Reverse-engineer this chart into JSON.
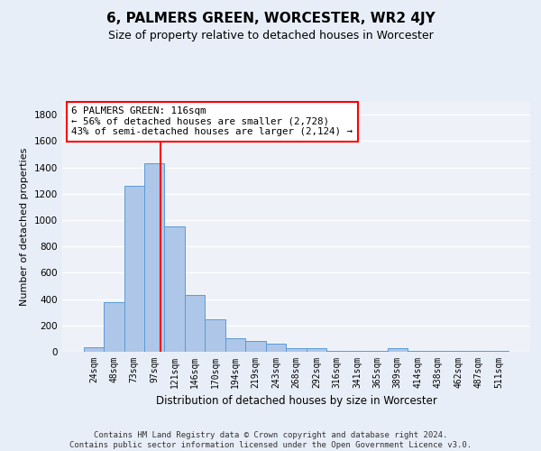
{
  "title": "6, PALMERS GREEN, WORCESTER, WR2 4JY",
  "subtitle": "Size of property relative to detached houses in Worcester",
  "xlabel": "Distribution of detached houses by size in Worcester",
  "ylabel": "Number of detached properties",
  "bin_labels": [
    "24sqm",
    "48sqm",
    "73sqm",
    "97sqm",
    "121sqm",
    "146sqm",
    "170sqm",
    "194sqm",
    "219sqm",
    "243sqm",
    "268sqm",
    "292sqm",
    "316sqm",
    "341sqm",
    "365sqm",
    "389sqm",
    "414sqm",
    "438sqm",
    "462sqm",
    "487sqm",
    "511sqm"
  ],
  "bar_heights": [
    35,
    380,
    1260,
    1430,
    950,
    430,
    245,
    105,
    85,
    65,
    30,
    25,
    10,
    5,
    5,
    25,
    5,
    5,
    5,
    5,
    5
  ],
  "bar_color": "#aec6e8",
  "bar_edge_color": "#5b9bd5",
  "property_line_color": "red",
  "annotation_text": "6 PALMERS GREEN: 116sqm\n← 56% of detached houses are smaller (2,728)\n43% of semi-detached houses are larger (2,124) →",
  "annotation_box_color": "#ffffff",
  "annotation_box_edge": "red",
  "footer": "Contains HM Land Registry data © Crown copyright and database right 2024.\nContains public sector information licensed under the Open Government Licence v3.0.",
  "ylim": [
    0,
    1900
  ],
  "yticks": [
    0,
    200,
    400,
    600,
    800,
    1000,
    1200,
    1400,
    1600,
    1800
  ],
  "bg_color": "#e8eef8",
  "plot_bg_color": "#eef2f8",
  "title_fontsize": 11,
  "subtitle_fontsize": 9,
  "ylabel_fontsize": 8,
  "xlabel_fontsize": 8.5,
  "tick_fontsize": 7,
  "footer_fontsize": 6.5,
  "annot_fontsize": 7.8
}
